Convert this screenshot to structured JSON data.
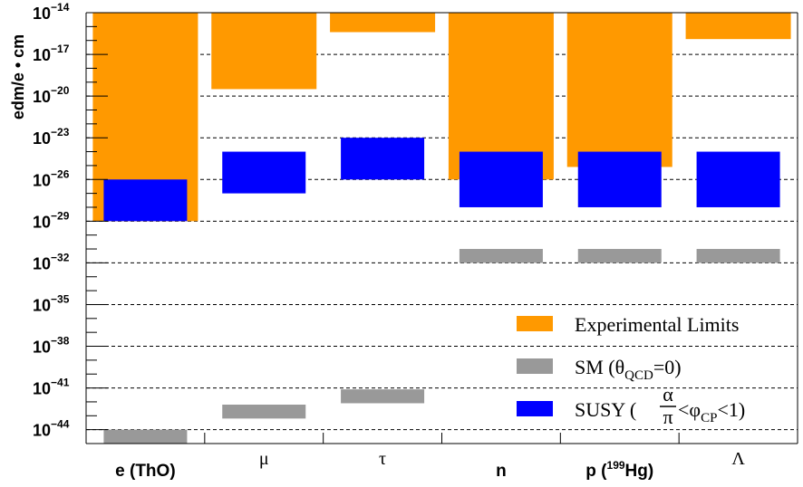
{
  "chart_data": {
    "type": "bar",
    "title": "",
    "ylabel": "edm/e • cm",
    "xlabel": "",
    "y_scale": "log",
    "ylim_exponent": [
      -45,
      -14
    ],
    "y_ticks": [
      {
        "base": "10",
        "exp": "−14",
        "e": -14
      },
      {
        "base": "10",
        "exp": "−17",
        "e": -17
      },
      {
        "base": "10",
        "exp": "−20",
        "e": -20
      },
      {
        "base": "10",
        "exp": "−23",
        "e": -23
      },
      {
        "base": "10",
        "exp": "−26",
        "e": -26
      },
      {
        "base": "10",
        "exp": "−29",
        "e": -29
      },
      {
        "base": "10",
        "exp": "−32",
        "e": -32
      },
      {
        "base": "10",
        "exp": "−35",
        "e": -35
      },
      {
        "base": "10",
        "exp": "−38",
        "e": -38
      },
      {
        "base": "10",
        "exp": "−41",
        "e": -41
      },
      {
        "base": "10",
        "exp": "−44",
        "e": -44
      }
    ],
    "grid": "horizontal dashed",
    "legend_position": "bottom-right",
    "categories": [
      {
        "label": "e (ThO)",
        "style": "bold"
      },
      {
        "label": "μ",
        "style": "serif"
      },
      {
        "label": "τ",
        "style": "serif"
      },
      {
        "label": "n",
        "style": "bold"
      },
      {
        "label_pre": "p (",
        "label_sup": "199",
        "label_post": "Hg)",
        "style": "bold"
      },
      {
        "label": "Λ",
        "style": "serif"
      }
    ],
    "series": [
      {
        "key": "experimental",
        "color": "#ff9900",
        "values_log10": [
          [
            -29,
            -14
          ],
          [
            -19.5,
            -14
          ],
          [
            -15.4,
            -14
          ],
          [
            -26,
            -14
          ],
          [
            -25.1,
            -14
          ],
          [
            -15.9,
            -14
          ]
        ]
      },
      {
        "key": "sm",
        "color": "#999999",
        "values_log10": [
          [
            -45,
            -44
          ],
          [
            -43.2,
            -42.2
          ],
          [
            -42.1,
            -41.1
          ],
          [
            -32,
            -31
          ],
          [
            -32,
            -31
          ],
          [
            -32,
            -31
          ]
        ]
      },
      {
        "key": "susy",
        "color": "#0000ff",
        "values_log10": [
          [
            -29,
            -26
          ],
          [
            -27,
            -24
          ],
          [
            -26,
            -23
          ],
          [
            -28,
            -24
          ],
          [
            -28,
            -24
          ],
          [
            -28,
            -24
          ]
        ]
      }
    ]
  },
  "legend": {
    "experimental": "Experimental Limits",
    "sm": {
      "pre": "SM (θ",
      "sub": "QCD",
      "post": "=0)"
    },
    "susy": {
      "pre": "SUSY (",
      "frac_num": "α",
      "frac_den": "π",
      "mid": "<φ",
      "sub": "CP",
      "post": "<1)"
    }
  }
}
